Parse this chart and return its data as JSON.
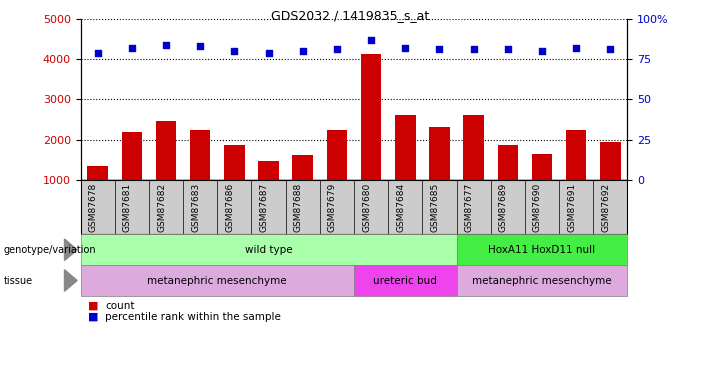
{
  "title": "GDS2032 / 1419835_s_at",
  "samples": [
    "GSM87678",
    "GSM87681",
    "GSM87682",
    "GSM87683",
    "GSM87686",
    "GSM87687",
    "GSM87688",
    "GSM87679",
    "GSM87680",
    "GSM87684",
    "GSM87685",
    "GSM87677",
    "GSM87689",
    "GSM87690",
    "GSM87691",
    "GSM87692"
  ],
  "counts": [
    1350,
    2180,
    2460,
    2230,
    1870,
    1480,
    1620,
    2230,
    4120,
    2620,
    2320,
    2620,
    1870,
    1640,
    2230,
    1950
  ],
  "percentiles": [
    79,
    82,
    84,
    83,
    80,
    79,
    80,
    81,
    87,
    82,
    81,
    81,
    81,
    80,
    82,
    81
  ],
  "ylim_left": [
    1000,
    5000
  ],
  "ylim_right": [
    0,
    100
  ],
  "yticks_left": [
    1000,
    2000,
    3000,
    4000,
    5000
  ],
  "yticks_right": [
    0,
    25,
    50,
    75,
    100
  ],
  "ytick_right_labels": [
    "0",
    "25",
    "50",
    "75",
    "100%"
  ],
  "bar_color": "#cc0000",
  "dot_color": "#0000cc",
  "bar_bottom": 1000,
  "genotype_labels": [
    {
      "text": "wild type",
      "start": 0,
      "end": 10,
      "color": "#aaffaa"
    },
    {
      "text": "HoxA11 HoxD11 null",
      "start": 11,
      "end": 15,
      "color": "#44ee44"
    }
  ],
  "tissue_labels": [
    {
      "text": "metanephric mesenchyme",
      "start": 0,
      "end": 7,
      "color": "#ddaadd"
    },
    {
      "text": "ureteric bud",
      "start": 8,
      "end": 10,
      "color": "#ee44ee"
    },
    {
      "text": "metanephric mesenchyme",
      "start": 11,
      "end": 15,
      "color": "#ddaadd"
    }
  ],
  "tick_label_color_left": "#cc0000",
  "tick_label_color_right": "#0000cc",
  "plot_facecolor": "#ffffff",
  "xtick_bg_color": "#cccccc"
}
